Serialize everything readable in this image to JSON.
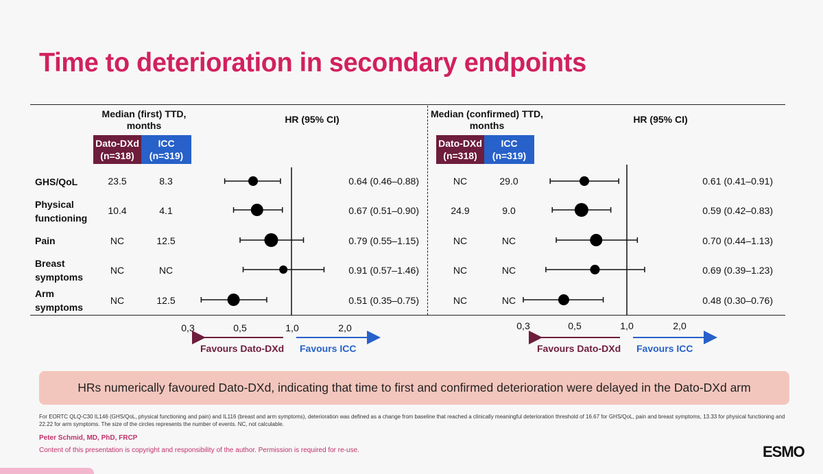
{
  "slide": {
    "title": "Time to deterioration in secondary endpoints",
    "conclusion": "HRs numerically favoured Dato-DXd, indicating that time to first and confirmed deterioration were delayed in the Dato-DXd arm",
    "footnote": "For EORTC QLQ-C30 IL146 (GHS/QoL, physical functioning and pain) and IL116 (breast and arm symptoms), deterioration was defined as a change from baseline that reached a clinically meaningful deterioration threshold of 16.67 for GHS/QoL, pain and breast symptoms, 13.33 for physical functioning and 22.22 for arm symptoms. The size of the circles represents the number of events. NC, not calculable.",
    "author": "Peter Schmid, MD, PhD, FRCP",
    "copyright": "Content of this presentation is copyright and responsibility of the author. Permission is required for re-use.",
    "logo": "ESMO"
  },
  "colors": {
    "title": "#d1215e",
    "dato": "#6e1d3c",
    "icc": "#2761c9",
    "conclusion_bg": "#f3c6bd",
    "author": "#c0306a"
  },
  "chart_data": [
    {
      "type": "forest",
      "header_median": "Median (first) TTD, months",
      "header_hr": "HR (95% CI)",
      "arm1_label": "Dato-DXd",
      "arm1_n": "(n=318)",
      "arm2_label": "ICC",
      "arm2_n": "(n=319)",
      "x_scale": "log",
      "xticks": [
        "0,3",
        "0,5",
        "1,0",
        "2,0"
      ],
      "xtick_values": [
        0.3,
        0.5,
        1.0,
        2.0
      ],
      "favours_left": "Favours Dato-DXd",
      "favours_right": "Favours ICC",
      "rows": [
        {
          "label": "GHS/QoL",
          "dato": "23.5",
          "icc": "8.3",
          "hr": 0.64,
          "lo": 0.46,
          "hi": 0.88,
          "text": "0.64 (0.46–0.88)"
        },
        {
          "label": "Physical functioning",
          "dato": "10.4",
          "icc": "4.1",
          "hr": 0.67,
          "lo": 0.51,
          "hi": 0.9,
          "text": "0.67 (0.51–0.90)"
        },
        {
          "label": "Pain",
          "dato": "NC",
          "icc": "12.5",
          "hr": 0.79,
          "lo": 0.55,
          "hi": 1.15,
          "text": "0.79 (0.55–1.15)"
        },
        {
          "label": "Breast symptoms",
          "dato": "NC",
          "icc": "NC",
          "hr": 0.91,
          "lo": 0.57,
          "hi": 1.46,
          "text": "0.91 (0.57–1.46)"
        },
        {
          "label": "Arm symptoms",
          "dato": "NC",
          "icc": "12.5",
          "hr": 0.51,
          "lo": 0.35,
          "hi": 0.75,
          "text": "0.51 (0.35–0.75)"
        }
      ]
    },
    {
      "type": "forest",
      "header_median": "Median (confirmed) TTD, months",
      "header_hr": "HR (95% CI)",
      "arm1_label": "Dato-DXd",
      "arm1_n": "(n=318)",
      "arm2_label": "ICC",
      "arm2_n": "(n=319)",
      "x_scale": "log",
      "xticks": [
        "0,3",
        "0,5",
        "1,0",
        "2,0"
      ],
      "xtick_values": [
        0.3,
        0.5,
        1.0,
        2.0
      ],
      "favours_left": "Favours Dato-DXd",
      "favours_right": "Favours ICC",
      "rows": [
        {
          "dato": "NC",
          "icc": "29.0",
          "hr": 0.61,
          "lo": 0.41,
          "hi": 0.91,
          "text": "0.61 (0.41–0.91)"
        },
        {
          "dato": "24.9",
          "icc": "9.0",
          "hr": 0.59,
          "lo": 0.42,
          "hi": 0.83,
          "text": "0.59 (0.42–0.83)"
        },
        {
          "dato": "NC",
          "icc": "NC",
          "hr": 0.7,
          "lo": 0.44,
          "hi": 1.13,
          "text": "0.70 (0.44–1.13)"
        },
        {
          "dato": "NC",
          "icc": "NC",
          "hr": 0.69,
          "lo": 0.39,
          "hi": 1.23,
          "text": "0.69 (0.39–1.23)"
        },
        {
          "dato": "NC",
          "icc": "NC",
          "hr": 0.48,
          "lo": 0.3,
          "hi": 0.76,
          "text": "0.48 (0.30–0.76)"
        }
      ]
    }
  ]
}
